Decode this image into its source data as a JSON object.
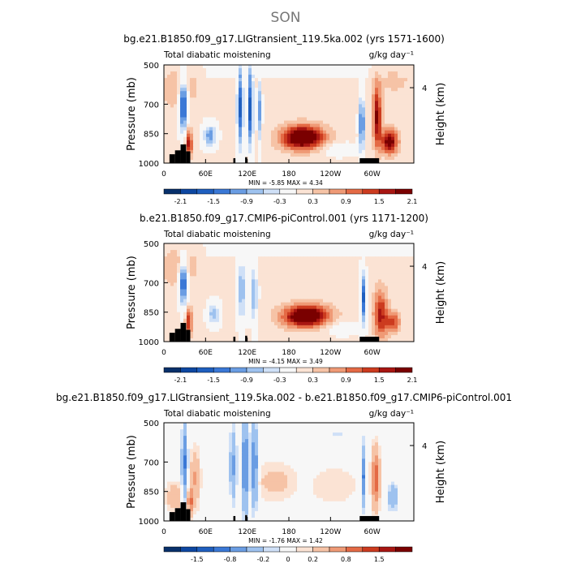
{
  "figure": {
    "title": "SON"
  },
  "colormaps": {
    "fill_colors": [
      "#08306b",
      "#0d47a1",
      "#1f5fbf",
      "#3a78d6",
      "#6a9de3",
      "#9ec2ef",
      "#cfe0f7",
      "#f7f7f7",
      "#fbe3d4",
      "#f6c3a6",
      "#ef9a76",
      "#e46a45",
      "#cc3b1f",
      "#a81612",
      "#7a0000"
    ]
  },
  "chart_data": [
    {
      "type": "heatmap",
      "title": "bg.e21.B1850.f09_g17.LIGtransient_119.5ka.002 (yrs 1571-1600)",
      "left_label": "Total diabatic moistening",
      "units_label": "g/kg day⁻¹",
      "ylabel": "Pressure (mb)",
      "ylabel_right": "Height (km)",
      "ylim": [
        1000,
        500
      ],
      "y_ticks": [
        "500",
        "700",
        "850",
        "1000"
      ],
      "y_tick_values": [
        500,
        700,
        850,
        1000
      ],
      "y_right_ticks": [
        "4"
      ],
      "y_right_tick_values": [
        616
      ],
      "xlim": [
        0,
        360
      ],
      "x_ticks": [
        "0",
        "60E",
        "120E",
        "180",
        "120W",
        "60W"
      ],
      "x_tick_values": [
        0,
        60,
        120,
        180,
        240,
        300
      ],
      "min_max_label": "MIN =   -5.85   MAX =    4.34",
      "colorbar_labels": [
        "-2.1",
        "-1.5",
        "-0.9",
        "-0.3",
        "0.3",
        "0.9",
        "1.5",
        "2.1"
      ],
      "colorbar_levels": [
        -2.4,
        -2.1,
        -1.8,
        -1.5,
        -1.2,
        -0.9,
        -0.6,
        -0.3,
        0.3,
        0.6,
        0.9,
        1.2,
        1.5,
        1.8,
        2.1,
        2.4
      ],
      "features": [
        {
          "lon": 28,
          "p": 700,
          "wlon": 6,
          "wp": 140,
          "v": -2.4
        },
        {
          "lon": 36,
          "p": 900,
          "wlon": 5,
          "wp": 70,
          "v": 1.6
        },
        {
          "lon": 66,
          "p": 860,
          "wlon": 10,
          "wp": 60,
          "v": -1.5
        },
        {
          "lon": 110,
          "p": 720,
          "wlon": 5,
          "wp": 220,
          "v": -2.0
        },
        {
          "lon": 125,
          "p": 720,
          "wlon": 4,
          "wp": 220,
          "v": -2.2
        },
        {
          "lon": 138,
          "p": 740,
          "wlon": 3,
          "wp": 180,
          "v": -1.4
        },
        {
          "lon": 200,
          "p": 870,
          "wlon": 30,
          "wp": 60,
          "v": 2.6
        },
        {
          "lon": 250,
          "p": 930,
          "wlon": 30,
          "wp": 40,
          "v": -0.4
        },
        {
          "lon": 285,
          "p": 800,
          "wlon": 4,
          "wp": 150,
          "v": -2.0
        },
        {
          "lon": 307,
          "p": 760,
          "wlon": 6,
          "wp": 150,
          "v": 1.8
        },
        {
          "lon": 325,
          "p": 890,
          "wlon": 12,
          "wp": 60,
          "v": 2.0
        },
        {
          "lon": 20,
          "p": 600,
          "wlon": 30,
          "wp": 120,
          "v": 0.5
        },
        {
          "lon": 330,
          "p": 560,
          "wlon": 25,
          "wp": 80,
          "v": 0.4
        }
      ],
      "background": 0.4
    },
    {
      "type": "heatmap",
      "title": "b.e21.B1850.f09_g17.CMIP6-piControl.001 (yrs 1171-1200)",
      "left_label": "Total diabatic moistening",
      "units_label": "g/kg day⁻¹",
      "ylabel": "Pressure (mb)",
      "ylabel_right": "Height (km)",
      "ylim": [
        1000,
        500
      ],
      "y_ticks": [
        "500",
        "700",
        "850",
        "1000"
      ],
      "y_tick_values": [
        500,
        700,
        850,
        1000
      ],
      "y_right_ticks": [
        "4"
      ],
      "y_right_tick_values": [
        616
      ],
      "xlim": [
        0,
        360
      ],
      "x_ticks": [
        "0",
        "60E",
        "120E",
        "180",
        "120W",
        "60W"
      ],
      "x_tick_values": [
        0,
        60,
        120,
        180,
        240,
        300
      ],
      "min_max_label": "MIN =   -4.15   MAX =    3.49",
      "colorbar_labels": [
        "-2.1",
        "-1.5",
        "-0.9",
        "-0.3",
        "0.3",
        "0.9",
        "1.5",
        "2.1"
      ],
      "colorbar_levels": [
        -2.4,
        -2.1,
        -1.8,
        -1.5,
        -1.2,
        -0.9,
        -0.6,
        -0.3,
        0.3,
        0.6,
        0.9,
        1.2,
        1.5,
        1.8,
        2.1,
        2.4
      ],
      "features": [
        {
          "lon": 28,
          "p": 700,
          "wlon": 6,
          "wp": 120,
          "v": -2.2
        },
        {
          "lon": 36,
          "p": 900,
          "wlon": 5,
          "wp": 70,
          "v": 1.4
        },
        {
          "lon": 72,
          "p": 860,
          "wlon": 9,
          "wp": 60,
          "v": -1.3
        },
        {
          "lon": 112,
          "p": 740,
          "wlon": 6,
          "wp": 180,
          "v": -1.3
        },
        {
          "lon": 130,
          "p": 760,
          "wlon": 5,
          "wp": 170,
          "v": -1.3
        },
        {
          "lon": 205,
          "p": 870,
          "wlon": 32,
          "wp": 55,
          "v": 2.6
        },
        {
          "lon": 255,
          "p": 930,
          "wlon": 30,
          "wp": 40,
          "v": -0.4
        },
        {
          "lon": 287,
          "p": 780,
          "wlon": 4,
          "wp": 140,
          "v": -2.0
        },
        {
          "lon": 312,
          "p": 860,
          "wlon": 10,
          "wp": 120,
          "v": 1.5
        },
        {
          "lon": 330,
          "p": 900,
          "wlon": 10,
          "wp": 50,
          "v": 1.3
        },
        {
          "lon": 20,
          "p": 600,
          "wlon": 30,
          "wp": 120,
          "v": 0.5
        }
      ],
      "background": 0.4
    },
    {
      "type": "heatmap",
      "title": "bg.e21.B1850.f09_g17.LIGtransient_119.5ka.002 - b.e21.B1850.f09_g17.CMIP6-piControl.001",
      "left_label": "Total diabatic moistening",
      "units_label": "g/kg day⁻¹",
      "ylabel": "Pressure (mb)",
      "ylabel_right": "Height (km)",
      "ylim": [
        1000,
        500
      ],
      "y_ticks": [
        "500",
        "700",
        "850",
        "1000"
      ],
      "y_tick_values": [
        500,
        700,
        850,
        1000
      ],
      "y_right_ticks": [
        "4"
      ],
      "y_right_tick_values": [
        616
      ],
      "xlim": [
        0,
        360
      ],
      "x_ticks": [
        "0",
        "60E",
        "120E",
        "180",
        "120W",
        "60W"
      ],
      "x_tick_values": [
        0,
        60,
        120,
        180,
        240,
        300
      ],
      "min_max_label": "MIN =   -1.76   MAX =    1.42",
      "colorbar_labels": [
        "-1.5",
        "-0.8",
        "-0.2",
        "0",
        "0.2",
        "0.8",
        "1.5"
      ],
      "colorbar_levels": [
        -2.0,
        -1.8,
        -1.5,
        -1.2,
        -0.8,
        -0.5,
        -0.2,
        -0.1,
        0.1,
        0.2,
        0.5,
        0.8,
        1.2,
        1.5,
        1.8,
        2.0
      ],
      "features": [
        {
          "lon": 30,
          "p": 700,
          "wlon": 4,
          "wp": 180,
          "v": -0.9
        },
        {
          "lon": 38,
          "p": 900,
          "wlon": 4,
          "wp": 60,
          "v": 0.9
        },
        {
          "lon": 45,
          "p": 780,
          "wlon": 6,
          "wp": 120,
          "v": 0.5
        },
        {
          "lon": 100,
          "p": 720,
          "wlon": 5,
          "wp": 180,
          "v": -0.6
        },
        {
          "lon": 117,
          "p": 720,
          "wlon": 4,
          "wp": 220,
          "v": -1.1
        },
        {
          "lon": 130,
          "p": 720,
          "wlon": 5,
          "wp": 200,
          "v": -0.9
        },
        {
          "lon": 160,
          "p": 800,
          "wlon": 25,
          "wp": 80,
          "v": 0.25
        },
        {
          "lon": 245,
          "p": 820,
          "wlon": 30,
          "wp": 80,
          "v": 0.15
        },
        {
          "lon": 250,
          "p": 580,
          "wlon": 40,
          "wp": 70,
          "v": -0.15
        },
        {
          "lon": 287,
          "p": 780,
          "wlon": 3,
          "wp": 140,
          "v": -0.9
        },
        {
          "lon": 305,
          "p": 780,
          "wlon": 5,
          "wp": 140,
          "v": 1.0
        },
        {
          "lon": 330,
          "p": 880,
          "wlon": 8,
          "wp": 70,
          "v": -0.5
        },
        {
          "lon": 15,
          "p": 880,
          "wlon": 10,
          "wp": 60,
          "v": 0.4
        }
      ],
      "background": 0.05
    }
  ],
  "terrain_blocks": [
    {
      "lon0": 8,
      "lon1": 16,
      "p0": 1000,
      "p1": 955
    },
    {
      "lon0": 16,
      "lon1": 24,
      "p0": 1000,
      "p1": 935
    },
    {
      "lon0": 24,
      "lon1": 32,
      "p0": 1000,
      "p1": 905
    },
    {
      "lon0": 32,
      "lon1": 38,
      "p0": 1000,
      "p1": 940
    },
    {
      "lon0": 100,
      "lon1": 103,
      "p0": 1000,
      "p1": 975
    },
    {
      "lon0": 117,
      "lon1": 120,
      "p0": 1000,
      "p1": 970
    },
    {
      "lon0": 282,
      "lon1": 310,
      "p0": 1000,
      "p1": 975
    }
  ]
}
